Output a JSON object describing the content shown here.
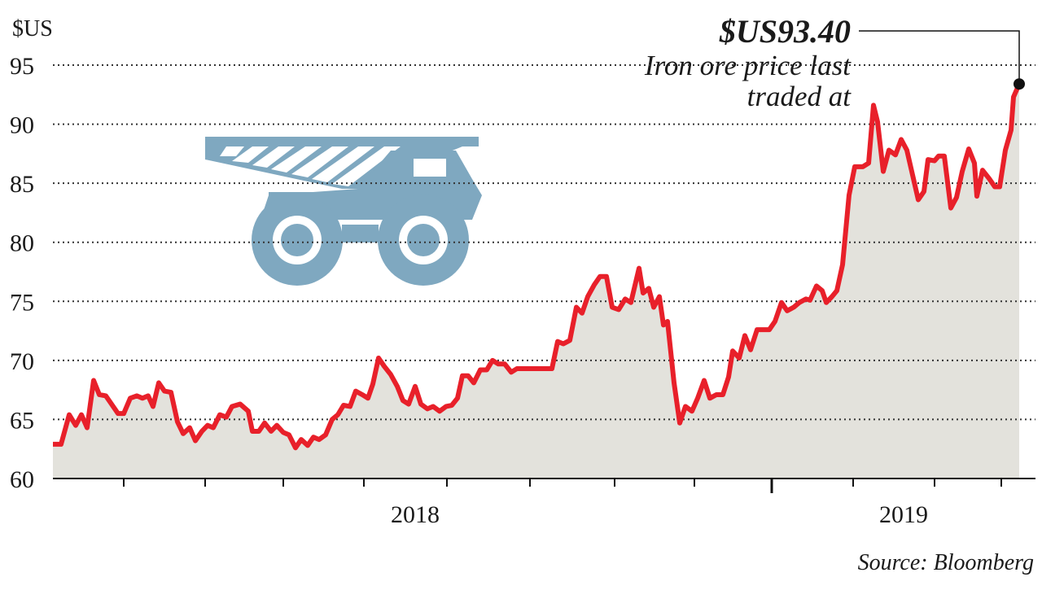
{
  "chart_data": {
    "type": "line",
    "y_unit": "$US",
    "annotation_value": "$US93.40",
    "annotation_text": [
      "Iron ore price last",
      "traded at"
    ],
    "source": "Source: Bloomberg",
    "xlim": [
      0,
      1187
    ],
    "xticks": [
      87,
      187,
      283,
      382,
      484,
      586,
      690,
      788,
      883,
      983,
      1083,
      1165
    ],
    "major_xticks": [
      883
    ],
    "year_labels": [
      {
        "value": 445,
        "label": "2018"
      },
      {
        "value": 1045,
        "label": "2019"
      }
    ],
    "ylim": [
      60,
      95
    ],
    "yticks": [
      60,
      65,
      70,
      75,
      80,
      85,
      90,
      95
    ],
    "grid": true,
    "area_color": "#e3e2dc",
    "series": [
      {
        "name": "Iron ore price",
        "color": "#e8202a",
        "x": [
          0,
          10,
          20,
          28,
          35,
          42,
          50,
          57,
          65,
          72,
          80,
          87,
          95,
          103,
          110,
          117,
          123,
          130,
          137,
          145,
          153,
          160,
          168,
          175,
          183,
          190,
          197,
          205,
          213,
          220,
          230,
          240,
          245,
          253,
          260,
          268,
          275,
          283,
          290,
          298,
          305,
          313,
          320,
          327,
          335,
          343,
          350,
          357,
          365,
          372,
          380,
          387,
          393,
          400,
          407,
          415,
          423,
          430,
          437,
          445,
          452,
          460,
          467,
          475,
          483,
          490,
          497,
          503,
          510,
          517,
          525,
          533,
          540,
          547,
          555,
          563,
          570,
          585,
          600,
          613,
          620,
          627,
          635,
          643,
          650,
          657,
          665,
          672,
          680,
          687,
          695,
          703,
          710,
          720,
          725,
          732,
          738,
          745,
          750,
          755,
          763,
          770,
          777,
          785,
          792,
          800,
          807,
          815,
          823,
          830,
          835,
          843,
          850,
          857,
          865,
          880,
          887,
          895,
          902,
          910,
          917,
          925,
          930,
          938,
          945,
          950,
          957,
          963,
          970,
          978,
          985,
          995,
          1002,
          1008,
          1013,
          1020,
          1027,
          1035,
          1042,
          1049,
          1055,
          1063,
          1070,
          1075,
          1083,
          1088,
          1095,
          1103,
          1110,
          1117,
          1125,
          1132,
          1135,
          1142,
          1150,
          1157,
          1163,
          1170,
          1177,
          1180,
          1187
        ],
        "values": [
          62.9,
          62.9,
          65.4,
          64.5,
          65.4,
          64.3,
          68.3,
          67.1,
          67.0,
          66.3,
          65.5,
          65.5,
          66.8,
          67.0,
          66.8,
          67.0,
          66.1,
          68.1,
          67.4,
          67.3,
          64.8,
          63.8,
          64.3,
          63.2,
          64.0,
          64.5,
          64.3,
          65.4,
          65.2,
          66.1,
          66.3,
          65.7,
          64.0,
          64.0,
          64.7,
          64.0,
          64.5,
          63.9,
          63.7,
          62.6,
          63.3,
          62.8,
          63.5,
          63.3,
          63.7,
          65.0,
          65.4,
          66.2,
          66.1,
          67.4,
          67.1,
          66.8,
          68.0,
          70.2,
          69.5,
          68.8,
          67.8,
          66.6,
          66.3,
          67.8,
          66.3,
          65.9,
          66.1,
          65.7,
          66.1,
          66.2,
          66.8,
          68.7,
          68.7,
          68.1,
          69.2,
          69.2,
          70.0,
          69.7,
          69.7,
          69.0,
          69.3,
          69.3,
          69.3,
          69.3,
          71.6,
          71.4,
          71.7,
          74.5,
          74.0,
          75.4,
          76.4,
          77.1,
          77.1,
          74.5,
          74.3,
          75.2,
          74.9,
          77.8,
          75.7,
          76.1,
          74.5,
          75.4,
          73.0,
          73.3,
          68.1,
          64.7,
          66.1,
          65.7,
          66.8,
          68.3,
          66.8,
          67.1,
          67.1,
          68.6,
          70.8,
          70.2,
          72.1,
          70.9,
          72.6,
          72.6,
          73.3,
          74.9,
          74.2,
          74.5,
          74.9,
          75.2,
          75.1,
          76.3,
          75.9,
          74.9,
          75.4,
          75.9,
          78.1,
          84.0,
          86.4,
          86.4,
          86.7,
          91.6,
          90.2,
          86.0,
          87.8,
          87.4,
          88.7,
          87.8,
          86.0,
          83.6,
          84.3,
          87.0,
          86.9,
          87.3,
          87.3,
          82.9,
          83.8,
          86.0,
          87.9,
          86.7,
          83.9,
          86.1,
          85.4,
          84.7,
          84.7,
          87.8,
          89.5,
          92.3,
          93.4
        ]
      }
    ]
  }
}
